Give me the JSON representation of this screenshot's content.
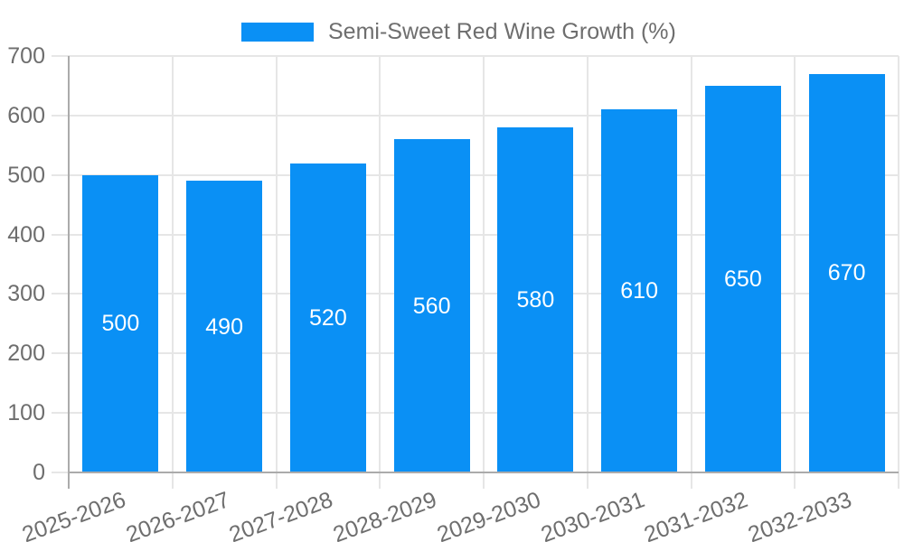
{
  "chart_data": {
    "type": "bar",
    "title": "",
    "series_name": "Semi-Sweet Red Wine Growth (%)",
    "categories": [
      "2025-2026",
      "2026-2027",
      "2027-2028",
      "2028-2029",
      "2029-2030",
      "2030-2031",
      "2031-2032",
      "2032-2033"
    ],
    "values": [
      500,
      490,
      520,
      560,
      580,
      610,
      650,
      670
    ],
    "xlabel": "",
    "ylabel": "",
    "ylim": [
      0,
      700
    ],
    "ytick_step": 100,
    "yticks": [
      0,
      100,
      200,
      300,
      400,
      500,
      600,
      700
    ],
    "grid": true,
    "legend_position": "top-center",
    "x_tick_rotation_deg": -20,
    "value_labels": "centered-inside-bars",
    "bar_color": "#0A90F5",
    "grid_color": "#e6e6e6",
    "axis_color": "#ababab",
    "text_color": "#6e6e6e",
    "value_label_color": "#ffffff",
    "background_color": "#ffffff"
  }
}
